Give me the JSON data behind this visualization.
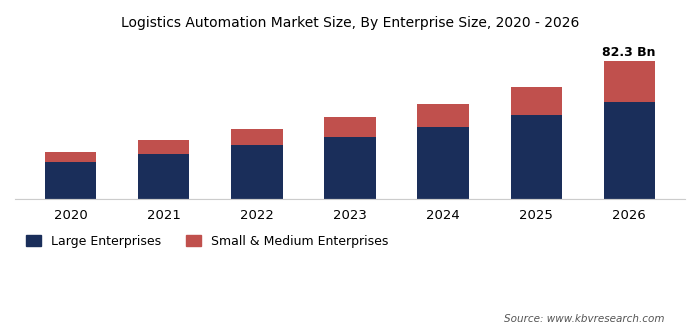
{
  "years": [
    "2020",
    "2021",
    "2022",
    "2023",
    "2024",
    "2025",
    "2026"
  ],
  "large_enterprises": [
    22,
    27,
    32,
    37,
    43,
    50,
    58
  ],
  "small_medium": [
    6,
    8,
    10,
    12,
    14,
    17,
    24.3
  ],
  "annotation": "82.3 Bn",
  "title": "Logistics Automation Market Size, By Enterprise Size, 2020 - 2026",
  "legend_large": "Large Enterprises",
  "legend_sme": "Small & Medium Enterprises",
  "source_text": "Source: www.kbvresearch.com",
  "color_large": "#1a2e5a",
  "color_sme": "#c0504d",
  "background_color": "#ffffff",
  "bar_width": 0.55
}
